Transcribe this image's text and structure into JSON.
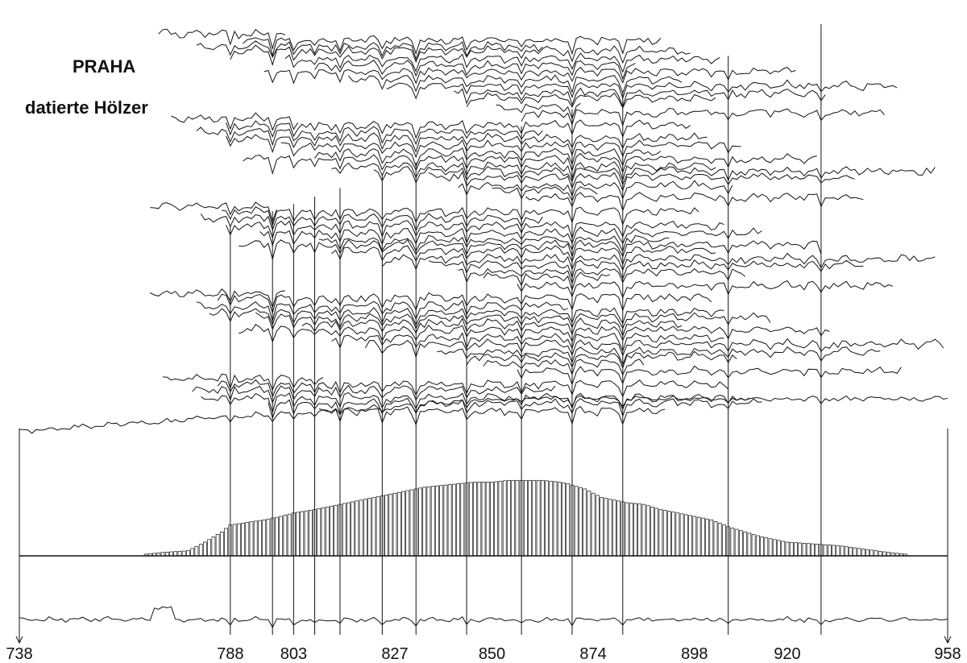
{
  "title_lines": [
    "PRAHA",
    "datierte Hölzer"
  ],
  "chart_data": {
    "type": "line",
    "title": "PRAHA datierte Hölzer",
    "subtitle": "",
    "xlabel": "",
    "ylabel": "",
    "xlim": [
      738,
      958
    ],
    "x_tick_labels": [
      "738",
      "788",
      "803",
      "827",
      "850",
      "874",
      "898",
      "920",
      "958"
    ],
    "x_ticks": [
      738,
      788,
      803,
      827,
      850,
      874,
      898,
      920,
      958
    ],
    "marker_years": [
      788,
      798,
      803,
      808,
      814,
      824,
      832,
      844,
      857,
      869,
      881,
      906,
      928
    ],
    "grid": false,
    "legend": "none",
    "line_color": "#111111",
    "series": [
      {
        "start": 738,
        "end": 958
      },
      {
        "start": 769,
        "end": 808
      },
      {
        "start": 784,
        "end": 903
      },
      {
        "start": 777,
        "end": 869
      },
      {
        "start": 782,
        "end": 909
      },
      {
        "start": 795,
        "end": 916
      },
      {
        "start": 806,
        "end": 894
      },
      {
        "start": 790,
        "end": 933
      },
      {
        "start": 810,
        "end": 906
      },
      {
        "start": 820,
        "end": 958
      },
      {
        "start": 835,
        "end": 941
      },
      {
        "start": 842,
        "end": 912
      },
      {
        "start": 848,
        "end": 883
      },
      {
        "start": 853,
        "end": 947
      }
    ],
    "histogram": {
      "description": "number of dated samples per year",
      "x": [
        768,
        772,
        778,
        782,
        786,
        788,
        796,
        800,
        803,
        808,
        812,
        816,
        820,
        824,
        828,
        834,
        838,
        842,
        846,
        850,
        854,
        858,
        862,
        866,
        868,
        872,
        876,
        882,
        886,
        890,
        896,
        902,
        906,
        910,
        914,
        920,
        926,
        932,
        938,
        944,
        948
      ],
      "y": [
        1,
        2,
        3,
        8,
        14,
        18,
        21,
        23,
        25,
        27,
        29,
        31,
        33,
        35,
        37,
        40,
        41,
        42,
        43,
        43,
        44,
        44,
        44,
        43,
        42,
        39,
        34,
        31,
        30,
        27,
        24,
        21,
        17,
        14,
        11,
        8,
        7,
        6,
        4,
        2,
        1
      ],
      "ymax": 46
    }
  }
}
